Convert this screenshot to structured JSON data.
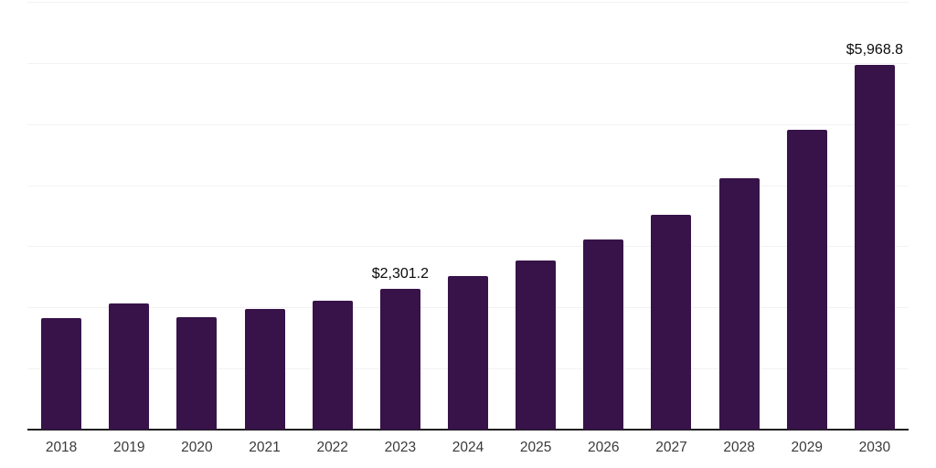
{
  "chart_data": {
    "type": "bar",
    "categories": [
      "2018",
      "2019",
      "2020",
      "2021",
      "2022",
      "2023",
      "2024",
      "2025",
      "2026",
      "2027",
      "2028",
      "2029",
      "2030"
    ],
    "values": [
      1822,
      2062,
      1838,
      1975,
      2110,
      2301.2,
      2513,
      2767,
      3111,
      3515,
      4113,
      4906,
      5968.8
    ],
    "value_labels": {
      "2023": "$2,301.2",
      "2030": "$5,968.8"
    },
    "title": "",
    "xlabel": "",
    "ylabel": "",
    "ylim": [
      0,
      7000
    ],
    "grid": true,
    "gridline_step": 1000,
    "legend": "none",
    "colors": {
      "bar": "#371349",
      "gridline": "#f2f2f2",
      "axis_line": "#1f1f1f",
      "tick_label": "#3a3a3a",
      "value_label": "#0a0a0a",
      "background": "#ffffff"
    }
  }
}
